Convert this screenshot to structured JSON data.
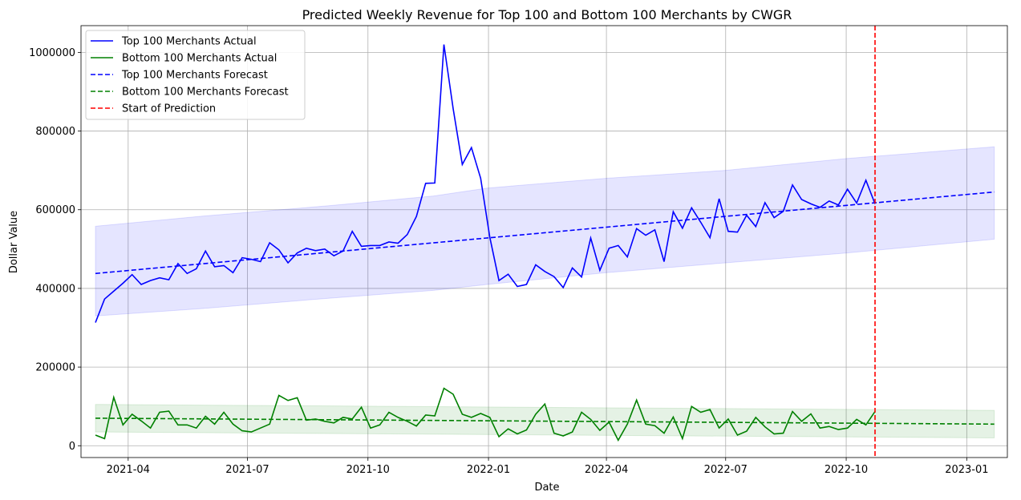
{
  "chart_data": {
    "type": "line",
    "title": "Predicted Weekly Revenue for Top 100 and Bottom 100 Merchants by CWGR",
    "xlabel": "Date",
    "ylabel": "Dollar Value",
    "x_range": [
      "2021-02-24",
      "2023-02-01"
    ],
    "ylim": [
      -30000,
      1068000
    ],
    "grid": true,
    "legend_placement": "top-left",
    "x_ticks": [
      {
        "date": "2021-04-01",
        "label": "2021-04"
      },
      {
        "date": "2021-07-01",
        "label": "2021-07"
      },
      {
        "date": "2021-10-01",
        "label": "2021-10"
      },
      {
        "date": "2022-01-01",
        "label": "2022-01"
      },
      {
        "date": "2022-04-01",
        "label": "2022-04"
      },
      {
        "date": "2022-07-01",
        "label": "2022-07"
      },
      {
        "date": "2022-10-01",
        "label": "2022-10"
      },
      {
        "date": "2023-01-01",
        "label": "2023-01"
      }
    ],
    "y_ticks": [
      {
        "value": 0,
        "label": "0"
      },
      {
        "value": 200000,
        "label": "200000"
      },
      {
        "value": 400000,
        "label": "400000"
      },
      {
        "value": 600000,
        "label": "600000"
      },
      {
        "value": 800000,
        "label": "800000"
      },
      {
        "value": 1000000,
        "label": "1000000"
      }
    ],
    "actual_start": "2021-03-07",
    "actual_interval_days": 7,
    "series": [
      {
        "name": "Top 100 Merchants Actual",
        "style": "solid",
        "color": "#0000ff",
        "values": [
          313000,
          373000,
          393000,
          413000,
          435000,
          410000,
          420000,
          427000,
          422000,
          463000,
          438000,
          450000,
          495000,
          455000,
          458000,
          440000,
          478000,
          474000,
          468000,
          516000,
          498000,
          465000,
          490000,
          502000,
          496000,
          500000,
          483000,
          495000,
          545000,
          507000,
          509000,
          509000,
          518000,
          515000,
          537000,
          583000,
          667000,
          668000,
          1020000,
          857000,
          715000,
          758000,
          680000,
          530000,
          420000,
          436000,
          405000,
          410000,
          460000,
          443000,
          430000,
          402000,
          452000,
          429000,
          528000,
          446000,
          502000,
          509000,
          480000,
          552000,
          535000,
          549000,
          468000,
          595000,
          553000,
          605000,
          568000,
          529000,
          628000,
          545000,
          543000,
          586000,
          557000,
          618000,
          580000,
          596000,
          663000,
          626000,
          615000,
          606000,
          622000,
          612000,
          652000,
          617000,
          675000,
          615000
        ]
      },
      {
        "name": "Bottom 100 Merchants Actual",
        "style": "solid",
        "color": "#008000",
        "values": [
          27000,
          18000,
          123000,
          53000,
          80000,
          63000,
          45000,
          85000,
          88000,
          53000,
          53000,
          45000,
          75000,
          55000,
          85000,
          55000,
          38000,
          35000,
          45000,
          55000,
          128000,
          115000,
          122000,
          65000,
          68000,
          62000,
          58000,
          72000,
          68000,
          98000,
          45000,
          53000,
          85000,
          72000,
          62000,
          50000,
          78000,
          76000,
          146000,
          131000,
          80000,
          72000,
          82000,
          72000,
          23000,
          43000,
          30000,
          40000,
          80000,
          106000,
          32000,
          25000,
          35000,
          85000,
          67000,
          39000,
          60000,
          14000,
          55000,
          116000,
          55000,
          51000,
          32000,
          73000,
          18000,
          100000,
          85000,
          92000,
          45000,
          68000,
          27000,
          37000,
          72000,
          48000,
          30000,
          32000,
          87000,
          62000,
          81000,
          45000,
          49000,
          41000,
          45000,
          67000,
          53000,
          87000
        ]
      },
      {
        "name": "Top 100 Merchants Forecast",
        "style": "dashed",
        "color": "#0000ff",
        "x": [
          "2021-03-07",
          "2023-01-22"
        ],
        "y": [
          438000,
          645000
        ],
        "band": {
          "color": "#0000ff",
          "x": [
            "2021-03-07",
            "2021-06-01",
            "2021-09-01",
            "2021-11-20",
            "2021-12-31",
            "2022-04-01",
            "2022-07-01",
            "2022-10-01",
            "2023-01-22"
          ],
          "upper": [
            558000,
            585000,
            610000,
            635000,
            655000,
            680000,
            700000,
            730000,
            760000
          ],
          "lower": [
            330000,
            350000,
            375000,
            395000,
            410000,
            440000,
            465000,
            490000,
            525000
          ]
        }
      },
      {
        "name": "Bottom 100 Merchants Forecast",
        "style": "dashed",
        "color": "#008000",
        "x": [
          "2021-03-07",
          "2023-01-22"
        ],
        "y": [
          70000,
          55000
        ],
        "band": {
          "color": "#008000",
          "x": [
            "2021-03-07",
            "2023-01-22"
          ],
          "upper": [
            105000,
            90000
          ],
          "lower": [
            35000,
            20000
          ]
        }
      },
      {
        "name": "Start of Prediction",
        "style": "dashed",
        "color": "#ff0000",
        "vline": "2022-10-23"
      }
    ]
  }
}
